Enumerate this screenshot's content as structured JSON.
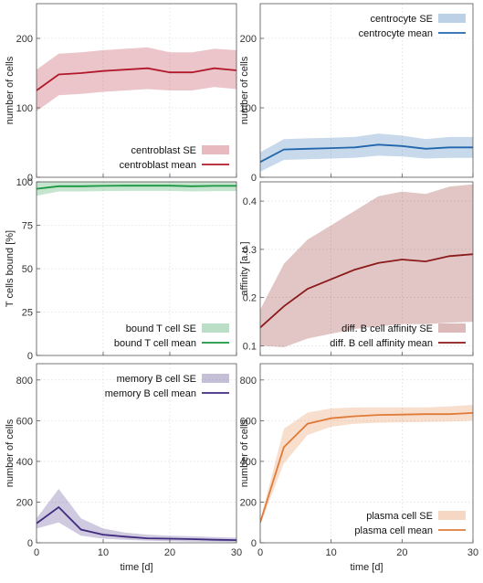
{
  "chart_data": [
    {
      "type": "line",
      "x": [
        0,
        3.33,
        6.67,
        10,
        13.33,
        16.67,
        20,
        23.33,
        26.67,
        30
      ],
      "xlim": [
        0,
        30
      ],
      "ylim": [
        0,
        250
      ],
      "xticks": [
        0,
        10,
        20,
        30
      ],
      "yticks": [
        0,
        100,
        200
      ],
      "xlabel": "",
      "ylabel": "number of cells",
      "grid": true,
      "legend": "bottom-right",
      "series": [
        {
          "name": "centroblast mean",
          "color": "#b2182b",
          "values": [
            125,
            148,
            150,
            153,
            155,
            157,
            151,
            151,
            157,
            154
          ],
          "se_label": "centroblast SE",
          "lower": [
            95,
            118,
            120,
            123,
            125,
            127,
            125,
            125,
            130,
            127
          ],
          "upper": [
            155,
            178,
            180,
            183,
            185,
            187,
            180,
            180,
            185,
            183
          ]
        }
      ]
    },
    {
      "type": "line",
      "x": [
        0,
        3.33,
        6.67,
        10,
        13.33,
        16.67,
        20,
        23.33,
        26.67,
        30
      ],
      "xlim": [
        0,
        30
      ],
      "ylim": [
        0,
        250
      ],
      "xticks": [
        0,
        10,
        20,
        30
      ],
      "yticks": [
        0,
        100,
        200
      ],
      "xlabel": "",
      "ylabel": "number of cells",
      "grid": true,
      "legend": "top-right",
      "series": [
        {
          "name": "centrocyte mean",
          "color": "#2166ac",
          "values": [
            22,
            40,
            41,
            42,
            43,
            47,
            45,
            41,
            43,
            43
          ],
          "se_label": "centrocyte SE",
          "lower": [
            8,
            25,
            26,
            27,
            28,
            31,
            30,
            27,
            28,
            28
          ],
          "upper": [
            36,
            55,
            56,
            57,
            58,
            63,
            60,
            55,
            58,
            58
          ]
        }
      ]
    },
    {
      "type": "line",
      "x": [
        0,
        3.33,
        6.67,
        10,
        13.33,
        16.67,
        20,
        23.33,
        26.67,
        30
      ],
      "xlim": [
        0,
        30
      ],
      "ylim": [
        0,
        100
      ],
      "xticks": [
        0,
        10,
        20,
        30
      ],
      "yticks": [
        0,
        25,
        50,
        75,
        100
      ],
      "xlabel": "",
      "ylabel": "T cells bound [%]",
      "grid": true,
      "legend": "bottom-right",
      "series": [
        {
          "name": "bound T cell mean",
          "color": "#1a9641",
          "values": [
            96,
            97.5,
            97.5,
            97.7,
            97.8,
            97.8,
            97.8,
            97.5,
            97.7,
            97.7
          ],
          "se_label": "bound T cell SE",
          "lower": [
            92,
            94.5,
            94.5,
            94.7,
            94.8,
            94.8,
            94.8,
            94.5,
            94.7,
            94.7
          ],
          "upper": [
            100,
            100,
            100,
            100,
            100,
            100,
            100,
            100,
            100,
            100
          ]
        }
      ]
    },
    {
      "type": "line",
      "x": [
        0,
        3.33,
        6.67,
        10,
        13.33,
        16.67,
        20,
        23.33,
        26.67,
        30
      ],
      "xlim": [
        0,
        30
      ],
      "ylim": [
        0.08,
        0.44
      ],
      "xticks": [
        0,
        10,
        20,
        30
      ],
      "yticks": [
        0.1,
        0.2,
        0.3,
        0.4
      ],
      "xlabel": "",
      "ylabel": "affinity [a.u.]",
      "grid": true,
      "legend": "bottom-right",
      "series": [
        {
          "name": "diff. B cell affinity mean",
          "color": "#8b1a1a",
          "values": [
            0.138,
            0.182,
            0.218,
            0.238,
            0.258,
            0.272,
            0.279,
            0.275,
            0.286,
            0.29
          ],
          "se_label": "diff. B cell affinity SE",
          "lower": [
            0.1,
            0.097,
            0.115,
            0.125,
            0.135,
            0.14,
            0.145,
            0.145,
            0.148,
            0.15
          ],
          "upper": [
            0.175,
            0.27,
            0.32,
            0.35,
            0.38,
            0.41,
            0.42,
            0.415,
            0.43,
            0.435
          ]
        }
      ]
    },
    {
      "type": "line",
      "x": [
        0,
        3.33,
        6.67,
        10,
        13.33,
        16.67,
        20,
        23.33,
        26.67,
        30
      ],
      "xlim": [
        0,
        30
      ],
      "ylim": [
        0,
        880
      ],
      "xticks": [
        0,
        10,
        20,
        30
      ],
      "yticks": [
        0,
        200,
        400,
        600,
        800
      ],
      "xlabel": "time [d]",
      "ylabel": "number of cells",
      "grid": true,
      "legend": "top-right",
      "series": [
        {
          "name": "memory B cell mean",
          "color": "#3f2a7e",
          "values": [
            95,
            175,
            65,
            40,
            30,
            22,
            20,
            18,
            15,
            13
          ],
          "se_label": "memory B cell SE",
          "lower": [
            70,
            100,
            35,
            20,
            15,
            10,
            8,
            6,
            5,
            3
          ],
          "upper": [
            120,
            265,
            120,
            70,
            50,
            40,
            35,
            32,
            28,
            25
          ]
        }
      ]
    },
    {
      "type": "line",
      "x": [
        0,
        3.33,
        6.67,
        10,
        13.33,
        16.67,
        20,
        23.33,
        26.67,
        30
      ],
      "xlim": [
        0,
        30
      ],
      "ylim": [
        0,
        880
      ],
      "xticks": [
        0,
        10,
        20,
        30
      ],
      "yticks": [
        0,
        200,
        400,
        600,
        800
      ],
      "xlabel": "time [d]",
      "ylabel": "number of cells",
      "grid": true,
      "legend": "bottom-right",
      "series": [
        {
          "name": "plasma cell mean",
          "color": "#e07b39",
          "values": [
            100,
            470,
            585,
            612,
            622,
            628,
            630,
            632,
            632,
            638
          ],
          "se_label": "plasma cell SE",
          "lower": [
            90,
            390,
            530,
            570,
            585,
            590,
            592,
            594,
            596,
            600
          ],
          "upper": [
            110,
            560,
            640,
            660,
            665,
            665,
            665,
            665,
            670,
            678
          ]
        }
      ]
    }
  ]
}
